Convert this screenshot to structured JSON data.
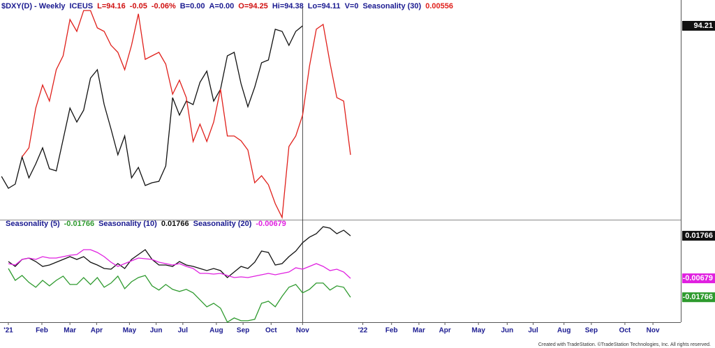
{
  "chart_data": [
    {
      "type": "line",
      "title": "$DXY(D) - Weekly",
      "exchange": "ICEUS",
      "quote": [
        {
          "text": "L=94.16",
          "color": "#d01010"
        },
        {
          "text": "-0.05",
          "color": "#d01010"
        },
        {
          "text": "-0.06%",
          "color": "#d01010"
        },
        {
          "text": "B=0.00",
          "color": "#1a1a90"
        },
        {
          "text": "A=0.00",
          "color": "#1a1a90"
        },
        {
          "text": "O=94.25",
          "color": "#d01010"
        },
        {
          "text": "Hi=94.38",
          "color": "#1a1a90"
        },
        {
          "text": "Lo=94.11",
          "color": "#1a1a90"
        },
        {
          "text": "V=0",
          "color": "#1a1a90"
        }
      ],
      "x": [
        -1,
        0,
        1,
        2,
        3,
        4,
        5,
        6,
        7,
        8,
        9,
        10,
        11,
        12,
        13,
        14,
        15,
        16,
        17,
        18,
        19,
        20,
        21,
        22,
        23,
        24,
        25,
        26,
        27,
        28,
        29,
        30,
        31,
        32,
        33,
        34,
        35,
        36,
        37,
        38,
        39,
        40,
        41,
        42,
        43,
        44,
        45,
        46,
        47,
        48,
        49,
        50
      ],
      "ylim": [
        88.65,
        94.95
      ],
      "y2lim": [
        0,
        100
      ],
      "series": [
        {
          "color": "#111111",
          "price_box": true,
          "values": [
            89.89,
            89.55,
            89.67,
            90.45,
            89.85,
            90.25,
            90.71,
            90.11,
            90.05,
            90.95,
            91.85,
            91.45,
            91.79,
            92.71,
            92.95,
            91.95,
            91.25,
            90.51,
            91.05,
            89.85,
            90.15,
            89.63,
            89.71,
            89.75,
            90.19,
            92.15,
            91.65,
            92.05,
            91.95,
            92.59,
            92.91,
            92.05,
            92.39,
            93.35,
            93.45,
            92.55,
            91.89,
            92.45,
            93.15,
            93.23,
            94.11,
            94.05,
            93.65,
            94.05,
            94.21,
            null,
            null,
            null,
            null,
            null,
            null,
            null
          ]
        },
        {
          "name": "Seasonality (30)",
          "color": "#e0201b",
          "axis": "y2",
          "legend_value": 0.00556,
          "values": [
            null,
            null,
            null,
            28.6,
            32.7,
            50.8,
            61.3,
            54.0,
            68.3,
            74.6,
            91.1,
            85.7,
            95.2,
            95.2,
            87.3,
            85.7,
            79.4,
            76.2,
            68.3,
            79.4,
            93.7,
            73.0,
            74.6,
            76.2,
            70.8,
            57.1,
            63.5,
            55.6,
            35.6,
            43.5,
            35.6,
            44.4,
            59.4,
            38.1,
            38.1,
            35.9,
            31.7,
            16.8,
            20.0,
            15.9,
            7.3,
            1.0,
            33.3,
            38.1,
            47.6,
            69.8,
            86.7,
            88.9,
            71.4,
            55.6,
            54.0,
            29.5
          ]
        }
      ]
    },
    {
      "type": "line",
      "x": [
        -1,
        0,
        1,
        2,
        3,
        4,
        5,
        6,
        7,
        8,
        9,
        10,
        11,
        12,
        13,
        14,
        15,
        16,
        17,
        18,
        19,
        20,
        21,
        22,
        23,
        24,
        25,
        26,
        27,
        28,
        29,
        30,
        31,
        32,
        33,
        34,
        35,
        36,
        37,
        38,
        39,
        40,
        41,
        42,
        43,
        44,
        45,
        46,
        47,
        48,
        49,
        50
      ],
      "ylim": [
        -0.032,
        0.0257
      ],
      "xlim": [
        -1.22,
        98.27
      ],
      "xticks": [
        {
          "value": 0,
          "label": "'21"
        },
        {
          "value": 4.9,
          "label": "Feb"
        },
        {
          "value": 9.0,
          "label": "Mar"
        },
        {
          "value": 12.9,
          "label": "Apr"
        },
        {
          "value": 17.7,
          "label": "May"
        },
        {
          "value": 21.6,
          "label": "Jun"
        },
        {
          "value": 25.5,
          "label": "Jul"
        },
        {
          "value": 30.4,
          "label": "Aug"
        },
        {
          "value": 34.3,
          "label": "Sep"
        },
        {
          "value": 38.4,
          "label": "Oct"
        },
        {
          "value": 43.0,
          "label": "Nov"
        },
        {
          "value": 51.8,
          "label": "'22"
        },
        {
          "value": 56.0,
          "label": "Feb"
        },
        {
          "value": 60.0,
          "label": "Mar"
        },
        {
          "value": 63.8,
          "label": "Apr"
        },
        {
          "value": 68.7,
          "label": "May"
        },
        {
          "value": 72.9,
          "label": "Jun"
        },
        {
          "value": 76.7,
          "label": "Jul"
        },
        {
          "value": 81.2,
          "label": "Aug"
        },
        {
          "value": 85.2,
          "label": "Sep"
        },
        {
          "value": 90.1,
          "label": "Oct"
        },
        {
          "value": 94.2,
          "label": "Nov"
        }
      ],
      "series": [
        {
          "name": "Seasonality (5)",
          "color": "#2e9a2e",
          "legend_value": -0.01766,
          "price_box": true,
          "values": [
            null,
            -0.00114,
            -0.00794,
            -0.00514,
            -0.00914,
            -0.01194,
            -0.00794,
            -0.01114,
            -0.00794,
            -0.00554,
            -0.01034,
            -0.01034,
            -0.00634,
            -0.01034,
            -0.00634,
            -0.01194,
            -0.00954,
            -0.00554,
            -0.01274,
            -0.00874,
            -0.00634,
            -0.00514,
            -0.01114,
            -0.01354,
            -0.01034,
            -0.01314,
            -0.01434,
            -0.01314,
            -0.01514,
            -0.01914,
            -0.02314,
            -0.02114,
            -0.02394,
            -0.03194,
            -0.02954,
            -0.03114,
            -0.03114,
            -0.03034,
            -0.02114,
            -0.01994,
            -0.02314,
            -0.01714,
            -0.01194,
            -0.01034,
            -0.01514,
            -0.01314,
            -0.00954,
            -0.00954,
            -0.01354,
            -0.01114,
            -0.01194,
            -0.01766
          ]
        },
        {
          "name": "Seasonality (10)",
          "color": "#111111",
          "legend_value": 0.01766,
          "price_box": true,
          "values": [
            null,
            0.00286,
            6e-05,
            0.00406,
            0.00486,
            0.00286,
            6e-05,
            0.00086,
            0.00246,
            0.00406,
            0.00566,
            0.00406,
            0.00566,
            0.00246,
            0.00086,
            -0.00114,
            -0.00154,
            0.00166,
            -0.00114,
            0.00406,
            0.00686,
            0.00966,
            0.00406,
            0.00086,
            0.00086,
            6e-05,
            0.00286,
            0.00086,
            6e-05,
            -0.00114,
            -0.00234,
            -0.00114,
            -0.00234,
            -0.00634,
            -0.00314,
            6e-05,
            -0.00114,
            0.00246,
            0.00886,
            0.00806,
            0.00086,
            0.00166,
            0.00566,
            0.00886,
            0.01366,
            0.01686,
            0.01886,
            0.02286,
            0.02206,
            0.01886,
            0.02086,
            0.01766
          ]
        },
        {
          "name": "Seasonality (20)",
          "color": "#e020e0",
          "legend_value": -0.00679,
          "price_box": true,
          "values": [
            null,
            0.00166,
            0.00086,
            0.00406,
            0.00486,
            0.00406,
            0.00566,
            0.00486,
            0.00486,
            0.00566,
            0.00646,
            0.00686,
            0.00966,
            0.00966,
            0.00806,
            0.00566,
            0.00246,
            6e-05,
            0.00166,
            0.00326,
            0.00486,
            0.00446,
            0.00406,
            0.00246,
            0.00166,
            0.00086,
            0.00166,
            6e-05,
            -0.00114,
            -0.00394,
            -0.00394,
            -0.00434,
            -0.00394,
            -0.00514,
            -0.00634,
            -0.00594,
            -0.00634,
            -0.00554,
            -0.00474,
            -0.00394,
            -0.00474,
            -0.00394,
            -0.00314,
            -0.00074,
            -0.00154,
            6e-05,
            0.00166,
            6e-05,
            -0.00234,
            -0.00154,
            -0.00314,
            -0.00679
          ]
        }
      ]
    }
  ],
  "footer": "Created with TradeStation. ©TradeStation Technologies, Inc. All rights reserved."
}
